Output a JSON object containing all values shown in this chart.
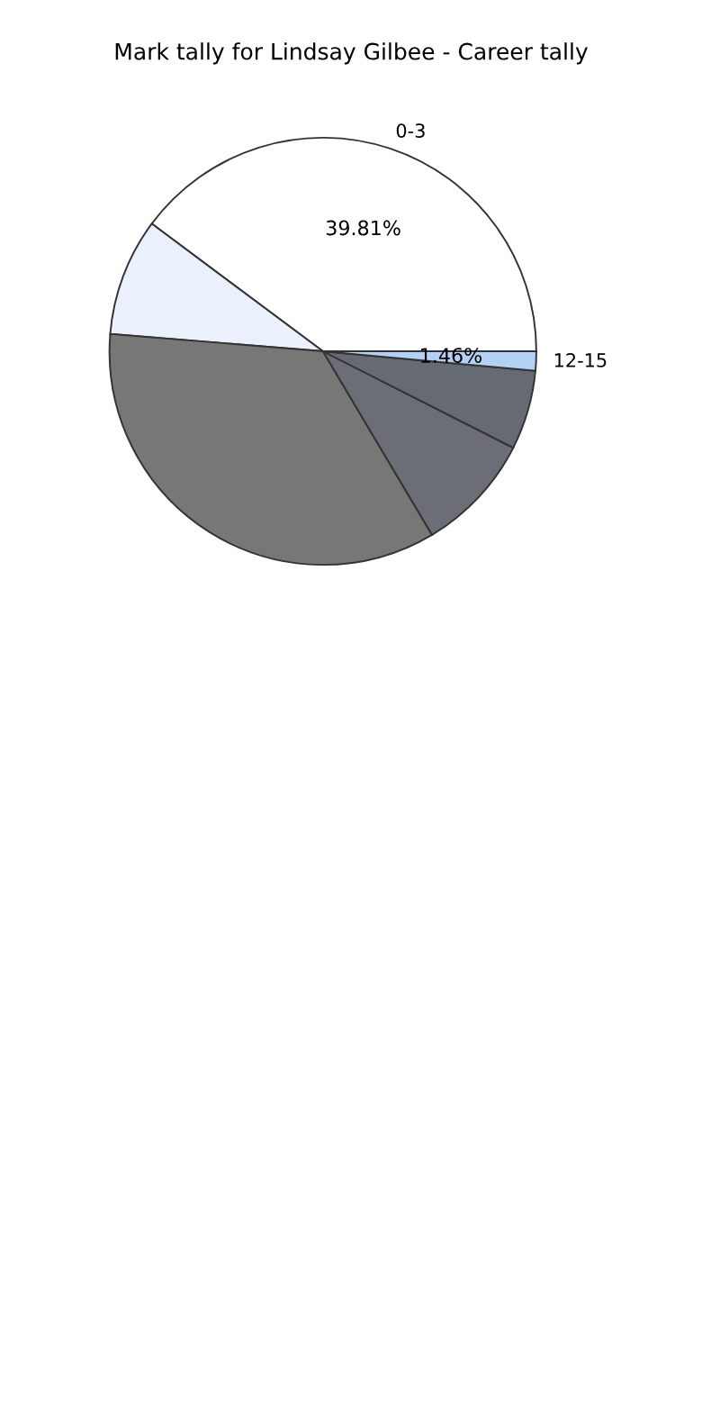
{
  "chart_data": {
    "type": "pie",
    "title": "Mark tally for Lindsay Gilbee - Career tally",
    "categories": [
      "0-3",
      null,
      null,
      null,
      null,
      "12-15"
    ],
    "values": [
      39.81,
      8.9,
      34.83,
      9.0,
      6.0,
      1.46
    ],
    "value_labels": [
      "39.81%",
      null,
      null,
      null,
      null,
      "1.46%"
    ],
    "colors": [
      "#ffffff",
      "#eaf0fc",
      "#777876",
      "#6b6e76",
      "#666a73",
      "#b3d1f5"
    ]
  }
}
